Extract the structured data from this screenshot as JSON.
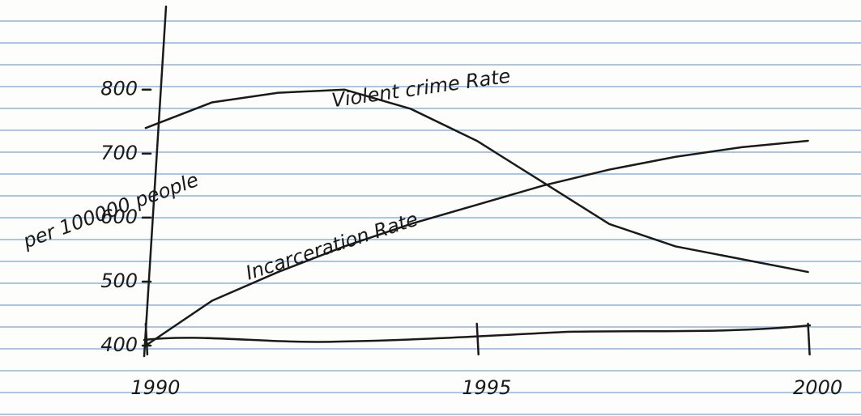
{
  "chart_data": {
    "type": "line",
    "y_label": "per 100000 people",
    "x": [
      1990,
      1991,
      1992,
      1993,
      1994,
      1995,
      1996,
      1997,
      1998,
      1999,
      2000
    ],
    "series": [
      {
        "name": "Violent crime Rate",
        "color": "#1a1a1a",
        "values": [
          740,
          780,
          795,
          800,
          770,
          720,
          655,
          590,
          555,
          535,
          515
        ]
      },
      {
        "name": "Incarceration Rate",
        "color": "#1a1a1a",
        "values": [
          400,
          470,
          515,
          555,
          590,
          620,
          650,
          675,
          695,
          710,
          720
        ]
      }
    ],
    "xlim": [
      1987.8,
      2000.8
    ],
    "xticks": [
      1990,
      1995,
      2000
    ],
    "ylim": [
      290,
      940
    ],
    "yticks": [
      400,
      500,
      600,
      700,
      800
    ]
  }
}
